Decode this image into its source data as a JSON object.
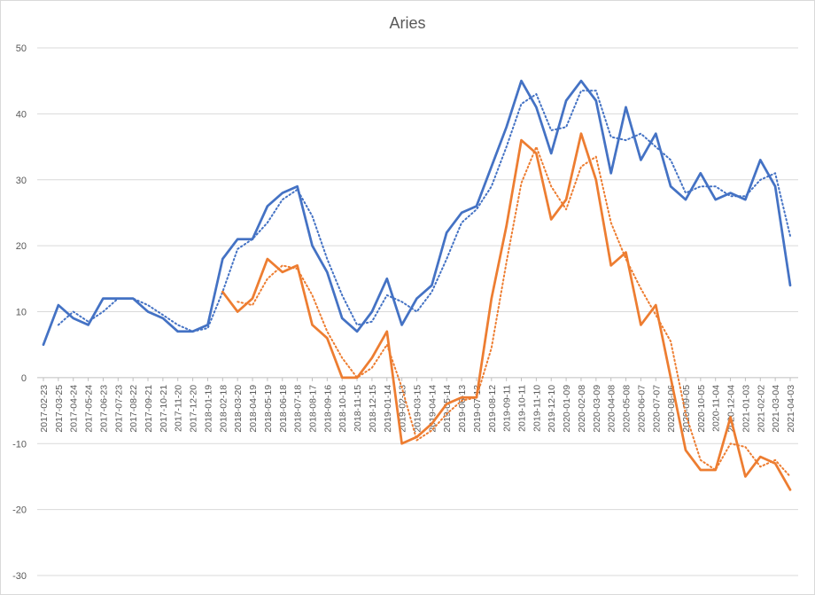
{
  "chart_data": {
    "type": "line",
    "title": "Aries",
    "xlabel": "",
    "ylabel": "",
    "ylim": [
      -30,
      50
    ],
    "yticks": [
      -30,
      -20,
      -10,
      0,
      10,
      20,
      30,
      40,
      50
    ],
    "grid": true,
    "legend": "none",
    "x": [
      "2017-02-23",
      "2017-03-25",
      "2017-04-24",
      "2017-05-24",
      "2017-06-23",
      "2017-07-23",
      "2017-08-22",
      "2017-09-21",
      "2017-10-21",
      "2017-11-20",
      "2017-12-20",
      "2018-01-19",
      "2018-02-18",
      "2018-03-20",
      "2018-04-19",
      "2018-05-19",
      "2018-06-18",
      "2018-07-18",
      "2018-08-17",
      "2018-09-16",
      "2018-10-16",
      "2018-11-15",
      "2018-12-15",
      "2019-01-14",
      "2019-02-13",
      "2019-03-15",
      "2019-04-14",
      "2019-05-14",
      "2019-06-13",
      "2019-07-13",
      "2019-08-12",
      "2019-09-11",
      "2019-10-11",
      "2019-11-10",
      "2019-12-10",
      "2020-01-09",
      "2020-02-08",
      "2020-03-09",
      "2020-04-08",
      "2020-05-08",
      "2020-06-07",
      "2020-07-07",
      "2020-08-06",
      "2020-09-05",
      "2020-10-05",
      "2020-11-04",
      "2020-12-04",
      "2021-01-03",
      "2021-02-02",
      "2021-03-04",
      "2021-04-03"
    ],
    "series": [
      {
        "color": "#4472c4",
        "style": "solid",
        "values": [
          5,
          11,
          9,
          8,
          12,
          12,
          12,
          10,
          9,
          7,
          7,
          8,
          18,
          21,
          21,
          26,
          28,
          29,
          20,
          16,
          9,
          7,
          10,
          15,
          8,
          12,
          14,
          22,
          25,
          26,
          32,
          38,
          45,
          41,
          34,
          42,
          45,
          42,
          31,
          41,
          33,
          37,
          29,
          27,
          31,
          27,
          28,
          27,
          33,
          29,
          14
        ]
      },
      {
        "color": "#4472c4",
        "style": "dotted",
        "values": [
          null,
          8,
          10,
          8.5,
          10,
          12,
          12,
          11,
          9.5,
          8,
          7,
          7.5,
          13,
          19.5,
          21,
          23.5,
          27,
          28.5,
          24.5,
          18,
          12.5,
          8,
          8.5,
          12.5,
          11.5,
          10,
          13,
          18,
          23.5,
          25.5,
          29,
          35,
          41.5,
          43,
          37.5,
          38,
          43.5,
          43.5,
          36.5,
          36,
          37,
          35,
          33,
          28,
          29,
          29,
          27.5,
          27.5,
          30,
          31,
          21.5
        ]
      },
      {
        "color": "#ed7d31",
        "style": "solid",
        "values": [
          null,
          null,
          null,
          null,
          null,
          null,
          null,
          null,
          null,
          null,
          null,
          null,
          13,
          10,
          12,
          18,
          16,
          17,
          8,
          6,
          0,
          0,
          3,
          7,
          -10,
          -9,
          -7,
          -4,
          -3,
          -3,
          12,
          23,
          36,
          34,
          24,
          27,
          37,
          30,
          17,
          19,
          8,
          11,
          0,
          -11,
          -14,
          -14,
          -6,
          -15,
          -12,
          -13,
          -17
        ]
      },
      {
        "color": "#ed7d31",
        "style": "dotted",
        "values": [
          null,
          null,
          null,
          null,
          null,
          null,
          null,
          null,
          null,
          null,
          null,
          null,
          null,
          11.5,
          11,
          15,
          17,
          16.5,
          12.5,
          7,
          3,
          0,
          1.5,
          5,
          -1.5,
          -9.5,
          -8,
          -5.5,
          -3.5,
          -3,
          4.5,
          17.5,
          29.5,
          35,
          29,
          25.5,
          32,
          33.5,
          23.5,
          18,
          13.5,
          9.5,
          5.5,
          -5.5,
          -12.5,
          -14,
          -10,
          -10.5,
          -13.5,
          -12.5,
          -15
        ]
      }
    ]
  }
}
